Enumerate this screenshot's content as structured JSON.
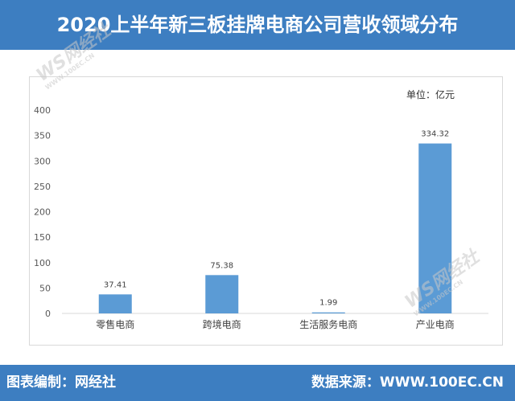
{
  "header": {
    "title": "2020上半年新三板挂牌电商公司营收领域分布"
  },
  "footer": {
    "left": "图表编制：网经社",
    "right": "数据来源：WWW.100EC.CN"
  },
  "watermark": {
    "logo": "WS网经社",
    "site": "WWW.100EC.CN"
  },
  "colors": {
    "header_bg": "#3d7ec1",
    "bar": "#5b9bd5"
  },
  "chart_data": {
    "type": "bar",
    "unit_label": "单位：亿元",
    "categories": [
      "零售电商",
      "跨境电商",
      "生活服务电商",
      "产业电商"
    ],
    "values": [
      37.41,
      75.38,
      1.99,
      334.32
    ],
    "value_labels": [
      "37.41",
      "75.38",
      "1.99",
      "334.32"
    ],
    "ylim": [
      0,
      400
    ],
    "yticks": [
      0,
      50,
      100,
      150,
      200,
      250,
      300,
      350,
      400
    ],
    "grid": false,
    "xlabel": "",
    "ylabel": ""
  }
}
